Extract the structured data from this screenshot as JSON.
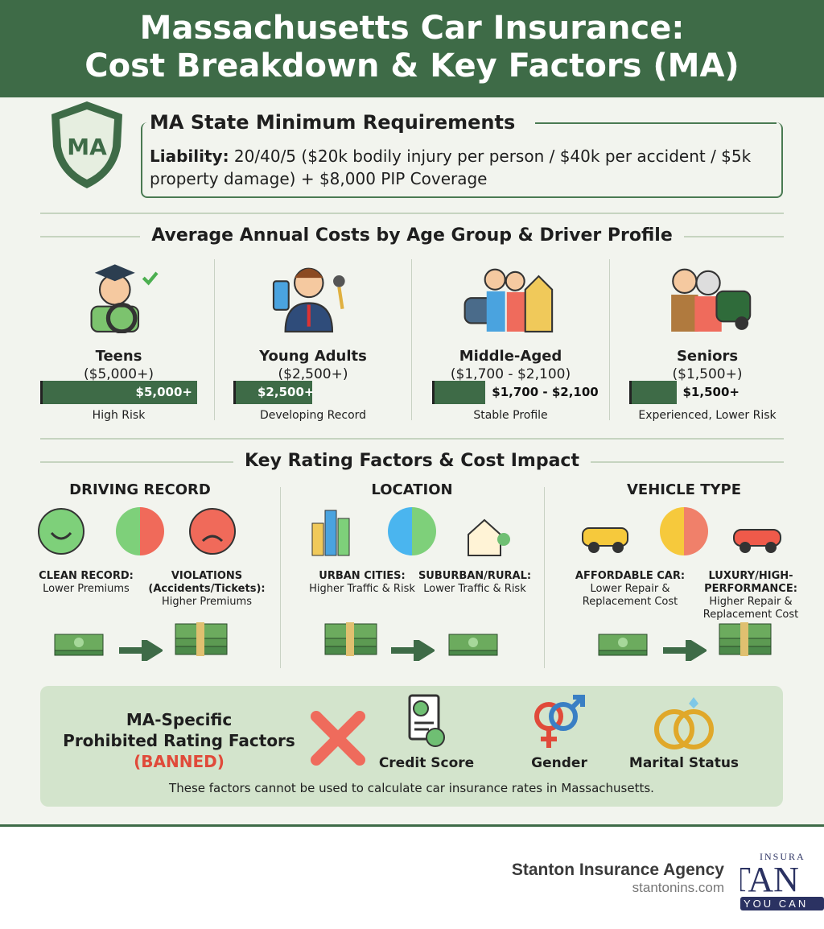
{
  "title": {
    "line1": "Massachusetts Car Insurance:",
    "line2": "Cost Breakdown & Key Factors (MA)"
  },
  "minimum": {
    "badge": "MA",
    "heading": "MA State Minimum Requirements",
    "label": "Liability:",
    "text": " 20/40/5 ($20k bodily injury per person / $40k per accident / $5k property damage) + $8,000 PIP Coverage"
  },
  "ages": {
    "heading": "Average Annual Costs by Age Group & Driver Profile",
    "groups": [
      {
        "name": "Teens",
        "range": "($5,000+)",
        "bar_label": "$5,000+",
        "bar_value": 5000,
        "caption": "High Risk",
        "icon": "teen-driver-icon"
      },
      {
        "name": "Young Adults",
        "range": "($2,500+)",
        "bar_label": "$2,500+",
        "bar_value": 2500,
        "caption": "Developing Record",
        "icon": "young-adult-icon"
      },
      {
        "name": "Middle-Aged",
        "range": "($1,700 - $2,100)",
        "bar_label": "$1,700 - $2,100",
        "bar_value": 1700,
        "caption": "Stable Profile",
        "icon": "family-icon"
      },
      {
        "name": "Seniors",
        "range": "($1,500+)",
        "bar_label": "$1,500+",
        "bar_value": 1500,
        "caption": "Experienced, Lower Risk",
        "icon": "seniors-icon"
      }
    ]
  },
  "factors": {
    "heading": "Key Rating Factors & Cost Impact",
    "items": [
      {
        "title": "DRIVING RECORD",
        "left_title": "CLEAN RECORD:",
        "left_text": "Lower Premiums",
        "right_title": "VIOLATIONS (Accidents/Tickets):",
        "right_text": "Higher Premiums"
      },
      {
        "title": "LOCATION",
        "left_title": "URBAN CITIES:",
        "left_text": "Higher Traffic & Risk",
        "right_title": "SUBURBAN/RURAL:",
        "right_text": "Lower Traffic & Risk"
      },
      {
        "title": "VEHICLE TYPE",
        "left_title": "AFFORDABLE CAR:",
        "left_text": "Lower Repair & Replacement Cost",
        "right_title": "LUXURY/HIGH-PERFORMANCE:",
        "right_text": "Higher Repair & Replacement Cost"
      }
    ]
  },
  "banned": {
    "title1": "MA-Specific",
    "title2": "Prohibited Rating Factors",
    "tag": "(BANNED)",
    "items": [
      "Credit Score",
      "Gender",
      "Marital Status"
    ],
    "note": "These factors cannot be used to calculate car insurance rates in Massachusetts."
  },
  "footer": {
    "agency": "Stanton Insurance Agency",
    "site": "stantonins.com",
    "logo_top": "INSURA",
    "logo_mid": "TAN",
    "logo_bottom": "YOU CAN"
  },
  "colors": {
    "green": "#3e6b47",
    "light_green": "#d3e4cc",
    "red": "#e04a3a",
    "logo_navy": "#2b3262"
  }
}
